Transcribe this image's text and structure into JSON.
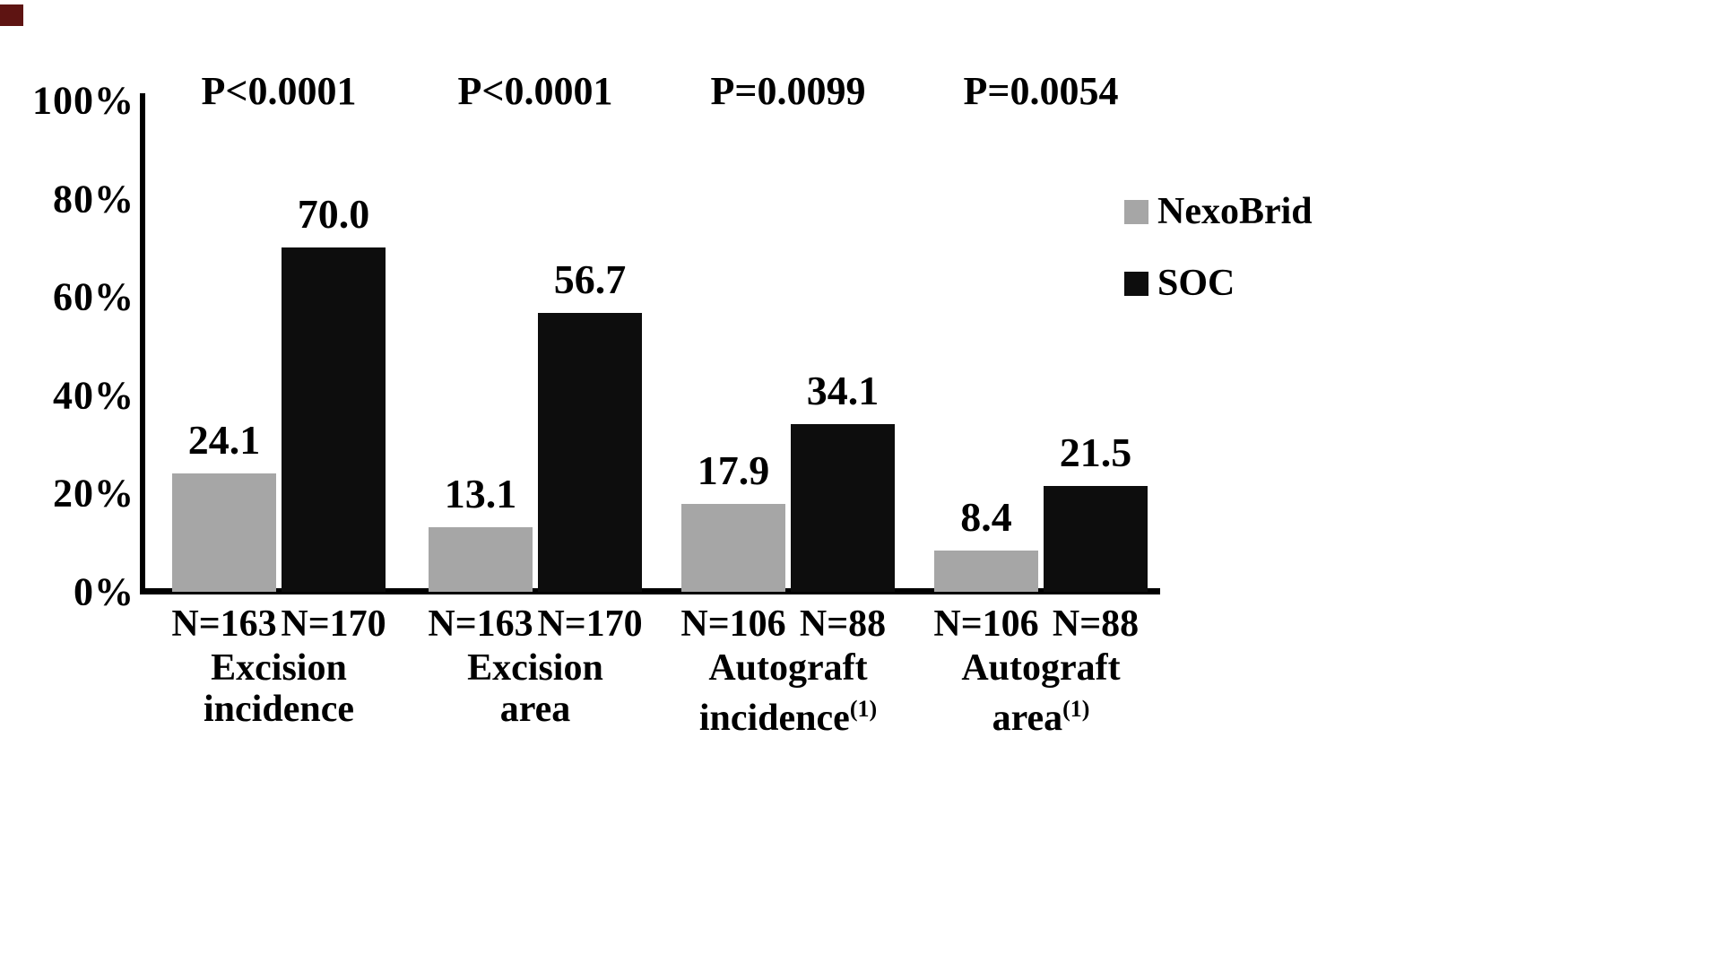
{
  "page": {
    "background": "#ffffff"
  },
  "chart_data": {
    "type": "bar",
    "title": "",
    "xlabel": "",
    "ylabel": "",
    "ylim": [
      0,
      100
    ],
    "y_tick_step": 20,
    "y_tick_labels": [
      "0%",
      "20%",
      "40%",
      "60%",
      "80%",
      "100%"
    ],
    "grid": false,
    "legend_position": "right",
    "categories": [
      "Excision incidence",
      "Excision area",
      "Autograft incidence(1)",
      "Autograft area(1)"
    ],
    "category_lines": [
      [
        "Excision",
        "incidence"
      ],
      [
        "Excision",
        "area"
      ],
      [
        "Autograft",
        "incidence"
      ],
      [
        "Autograft",
        "area"
      ]
    ],
    "category_superscripts": [
      "",
      "",
      "(1)",
      "(1)"
    ],
    "p_values": [
      "P<0.0001",
      "P<0.0001",
      "P=0.0099",
      "P=0.0054"
    ],
    "series": [
      {
        "name": "NexoBrid",
        "color": "#a6a6a6",
        "values": [
          24.1,
          13.1,
          17.9,
          8.4
        ],
        "n_labels": [
          "N=163",
          "N=163",
          "N=106",
          "N=106"
        ]
      },
      {
        "name": "SOC",
        "color": "#0d0d0d",
        "values": [
          70.0,
          56.7,
          34.1,
          21.5
        ],
        "n_labels": [
          "N=170",
          "N=170",
          "N=88",
          "N=88"
        ]
      }
    ]
  }
}
